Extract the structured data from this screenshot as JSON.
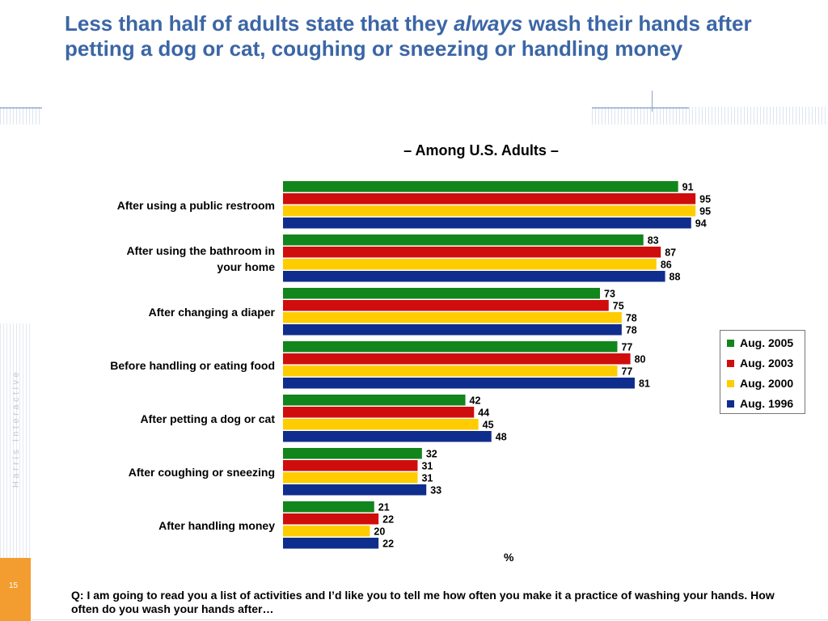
{
  "header": {
    "title_part1": "Less than half of adults state that they ",
    "title_emphasis": "always",
    "title_part2": " wash their hands after petting a dog or cat, coughing or sneezing or handling money"
  },
  "sidebar": {
    "brand": "Harris Interactive",
    "page_number": "15"
  },
  "chart_data": {
    "type": "bar",
    "orientation": "horizontal",
    "subtitle": "– Among U.S. Adults –",
    "x_unit_label": "%",
    "xlim": [
      0,
      100
    ],
    "categories": [
      [
        "After using a public restroom"
      ],
      [
        "After using the bathroom in",
        "your home"
      ],
      [
        "After changing a diaper"
      ],
      [
        "Before handling or eating food"
      ],
      [
        "After petting a dog or cat"
      ],
      [
        "After coughing or sneezing"
      ],
      [
        "After handling money"
      ]
    ],
    "series": [
      {
        "name": "Aug. 2005",
        "color": "#12851c",
        "values": [
          91,
          83,
          73,
          77,
          42,
          32,
          21
        ]
      },
      {
        "name": "Aug. 2003",
        "color": "#d00d0d",
        "values": [
          95,
          87,
          75,
          80,
          44,
          31,
          22
        ]
      },
      {
        "name": "Aug. 2000",
        "color": "#ffcc00",
        "values": [
          95,
          86,
          78,
          77,
          45,
          31,
          20
        ]
      },
      {
        "name": "Aug. 1996",
        "color": "#0f2d8c",
        "values": [
          94,
          88,
          78,
          81,
          48,
          33,
          22
        ]
      }
    ],
    "legend_position": "right",
    "grid": false
  },
  "footer": {
    "question": "Q: I am going to read you a list of activities and I’d like you to tell me how often you make it a practice of washing your hands. How often do you wash your hands after…"
  }
}
